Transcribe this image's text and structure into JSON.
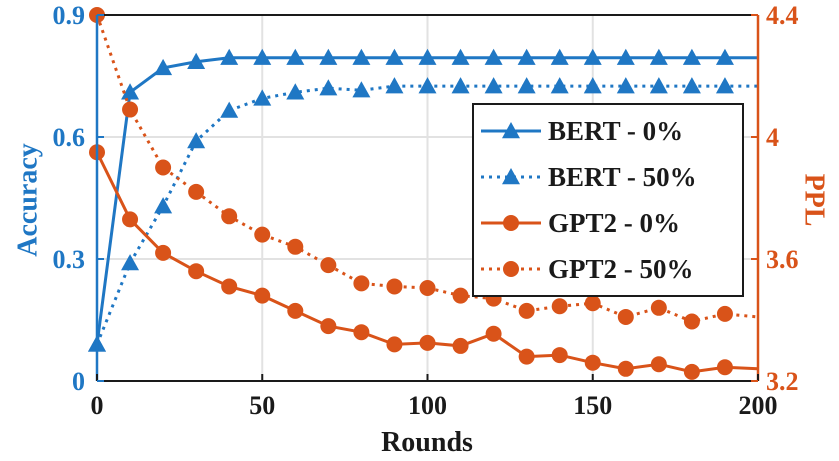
{
  "chart_data": {
    "type": "line",
    "xlabel": "Rounds",
    "ylabel_left": "Accuracy",
    "ylabel_right": "PPL",
    "xlim": [
      0,
      200
    ],
    "ylim_left": [
      0,
      0.9
    ],
    "ylim_right": [
      3.2,
      4.4
    ],
    "xticks": [
      "0",
      "50",
      "100",
      "150",
      "200"
    ],
    "yticks_left": [
      "0",
      "0.3",
      "0.6",
      "0.9"
    ],
    "yticks_right": [
      "3.2",
      "3.6",
      "4",
      "4.4"
    ],
    "grid": true,
    "legend_position": "right",
    "colors": {
      "left_axis": "#1f77c4",
      "right_axis": "#d95319"
    },
    "series": [
      {
        "name": "BERT - 0%",
        "axis": "left",
        "style": "solid",
        "marker": "triangle",
        "x": [
          0,
          10,
          20,
          30,
          40,
          50,
          60,
          70,
          80,
          90,
          100,
          110,
          120,
          130,
          140,
          150,
          160,
          170,
          180,
          190
        ],
        "values": [
          0.09,
          0.71,
          0.77,
          0.785,
          0.795,
          0.795,
          0.795,
          0.795,
          0.795,
          0.795,
          0.795,
          0.795,
          0.795,
          0.795,
          0.795,
          0.795,
          0.795,
          0.795,
          0.795,
          0.795
        ],
        "end_x": 200,
        "end_value": 0.795
      },
      {
        "name": "BERT - 50%",
        "axis": "left",
        "style": "dotted",
        "marker": "triangle",
        "x": [
          0,
          10,
          20,
          30,
          40,
          50,
          60,
          70,
          80,
          90,
          100,
          110,
          120,
          130,
          140,
          150,
          160,
          170,
          180,
          190
        ],
        "values": [
          0.09,
          0.29,
          0.43,
          0.59,
          0.665,
          0.695,
          0.71,
          0.72,
          0.715,
          0.725,
          0.725,
          0.725,
          0.725,
          0.725,
          0.725,
          0.725,
          0.725,
          0.725,
          0.725,
          0.725
        ],
        "end_x": 200,
        "end_value": 0.725
      },
      {
        "name": "GPT2 - 0%",
        "axis": "right",
        "style": "solid",
        "marker": "circle",
        "x": [
          0,
          10,
          20,
          30,
          40,
          50,
          60,
          70,
          80,
          90,
          100,
          110,
          120,
          130,
          140,
          150,
          160,
          170,
          180,
          190
        ],
        "values": [
          3.95,
          3.73,
          3.62,
          3.56,
          3.51,
          3.48,
          3.43,
          3.38,
          3.36,
          3.32,
          3.325,
          3.315,
          3.355,
          3.28,
          3.285,
          3.26,
          3.24,
          3.255,
          3.23,
          3.245
        ],
        "end_x": 200,
        "end_value": 3.24
      },
      {
        "name": "GPT2 - 50%",
        "axis": "right",
        "style": "dotted",
        "marker": "circle",
        "x": [
          0,
          10,
          20,
          30,
          40,
          50,
          60,
          70,
          80,
          90,
          100,
          110,
          120,
          130,
          140,
          150,
          160,
          170,
          180,
          190
        ],
        "values": [
          4.42,
          4.09,
          3.9,
          3.82,
          3.74,
          3.68,
          3.64,
          3.58,
          3.52,
          3.51,
          3.505,
          3.48,
          3.47,
          3.43,
          3.445,
          3.455,
          3.41,
          3.44,
          3.395,
          3.42
        ],
        "end_x": 200,
        "end_value": 3.41
      }
    ]
  }
}
